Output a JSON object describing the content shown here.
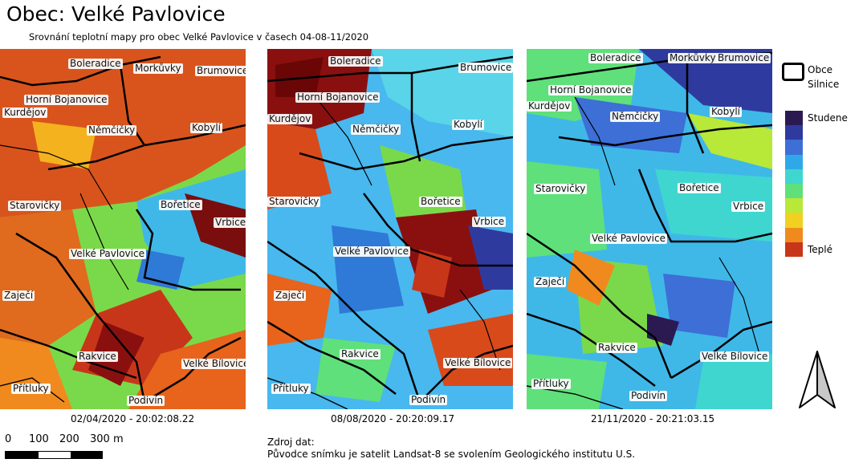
{
  "header": {
    "title": "Obec: Velké Pavlovice",
    "subtitle": "Srovnání teplotní mapy pro obec Velké Pavlovice v časech 04-08-11/2020"
  },
  "maps": [
    {
      "caption": "02/04/2020 - 20:02:08.22",
      "places": [
        "Boleradice",
        "Morkůvky",
        "Brumovice",
        "Horní Bojanovice",
        "Kurdějov",
        "Němčičky",
        "Kobylí",
        "Starovičky",
        "Bořetice",
        "Vrbice",
        "Velké Pavlovice",
        "Zaječí",
        "Rakvice",
        "Velké Bílovice",
        "Přítluky",
        "Podivín"
      ]
    },
    {
      "caption": "08/08/2020 - 20:20:09.17",
      "places": [
        "Boleradice",
        "Brumovice",
        "Horní Bojanovice",
        "Kurdějov",
        "Němčičky",
        "Kobylí",
        "Starovičky",
        "Bořetice",
        "Vrbice",
        "Velké Pavlovice",
        "Zaječí",
        "Rakvice",
        "Velké Bílovice",
        "Přítluky",
        "Podivín"
      ]
    },
    {
      "caption": "21/11/2020 - 20:21:03.15",
      "places": [
        "Boleradice",
        "Morkůvky",
        "Brumovice",
        "Horní Bojanovice",
        "Kurdějov",
        "Němčičky",
        "Kobylí",
        "Starovičky",
        "Bořetice",
        "Vrbice",
        "Velké Pavlovice",
        "Zaječí",
        "Rakvice",
        "Velké Bílovice",
        "Přítluky",
        "Podivín"
      ]
    }
  ],
  "legend": {
    "obce": "Obce",
    "silnice": "Silnice",
    "cold": "Studene",
    "warm": "Teplé",
    "ramp_colors": [
      "#2b1a52",
      "#2f3a9e",
      "#3d6fd6",
      "#2fa8e8",
      "#3fd6d0",
      "#5fe07a",
      "#b8e838",
      "#f0d020",
      "#f08a1e",
      "#c8361a"
    ]
  },
  "scalebar": {
    "labels": [
      "0",
      "100",
      "200",
      "300 m"
    ]
  },
  "source": {
    "line1": "Zdroj dat:",
    "line2": "Původce snímku je satelit Landsat-8 se svolením Geologického institutu U.S."
  }
}
